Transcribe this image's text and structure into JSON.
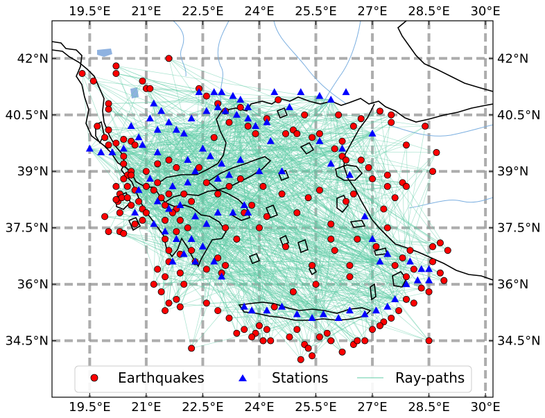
{
  "map": {
    "lon_range": [
      18.5,
      30.2
    ],
    "lat_range": [
      33.0,
      43.0
    ],
    "lon_ticks": [
      {
        "value": 19.5,
        "label": "19.5°E"
      },
      {
        "value": 21.0,
        "label": "21°E"
      },
      {
        "value": 22.5,
        "label": "22.5°E"
      },
      {
        "value": 24.0,
        "label": "24°E"
      },
      {
        "value": 25.5,
        "label": "25.5°E"
      },
      {
        "value": 27.0,
        "label": "27°E"
      },
      {
        "value": 28.5,
        "label": "28.5°E"
      },
      {
        "value": 30.0,
        "label": "30°E"
      }
    ],
    "lat_ticks": [
      {
        "value": 42.0,
        "label": "42°N"
      },
      {
        "value": 40.5,
        "label": "40.5°N"
      },
      {
        "value": 39.0,
        "label": "39°N"
      },
      {
        "value": 37.5,
        "label": "37.5°N"
      },
      {
        "value": 36.0,
        "label": "36°N"
      },
      {
        "value": 34.5,
        "label": "34.5°N"
      }
    ],
    "grid": "dashed",
    "legend_position": "bottom-center",
    "colors": {
      "earthquake": "#ff0000",
      "station": "#0000ff",
      "raypath": "#5fcca5",
      "coast": "#000000",
      "river": "#7aaee0",
      "grid": "#999999"
    }
  },
  "legend": {
    "earthquakes": "Earthquakes",
    "stations": "Stations",
    "raypaths": "Ray-paths"
  },
  "earthquakes": [
    [
      19.3,
      41.6
    ],
    [
      19.6,
      41.4
    ],
    [
      20.2,
      41.8
    ],
    [
      20.2,
      41.6
    ],
    [
      20.0,
      40.8
    ],
    [
      20.0,
      40.65
    ],
    [
      19.7,
      40.2
    ],
    [
      20.0,
      40.1
    ],
    [
      19.9,
      39.9
    ],
    [
      20.4,
      39.85
    ],
    [
      20.6,
      39.8
    ],
    [
      20.7,
      39.7
    ],
    [
      20.2,
      39.75
    ],
    [
      20.0,
      39.7
    ],
    [
      20.9,
      41.4
    ],
    [
      21.0,
      41.2
    ],
    [
      21.1,
      41.2
    ],
    [
      21.6,
      42.0
    ],
    [
      20.4,
      39.4
    ],
    [
      20.4,
      39.2
    ],
    [
      20.6,
      39.0
    ],
    [
      20.5,
      38.9
    ],
    [
      20.4,
      38.8
    ],
    [
      20.5,
      38.6
    ],
    [
      20.3,
      38.4
    ],
    [
      20.25,
      38.2
    ],
    [
      20.35,
      38.3
    ],
    [
      20.2,
      38.25
    ],
    [
      20.5,
      38.3
    ],
    [
      20.7,
      38.5
    ],
    [
      20.6,
      38.1
    ],
    [
      20.8,
      38.2
    ],
    [
      20.9,
      38.0
    ],
    [
      21.0,
      37.9
    ],
    [
      20.9,
      37.7
    ],
    [
      20.7,
      37.6
    ],
    [
      20.3,
      37.4
    ],
    [
      20.4,
      37.35
    ],
    [
      20.0,
      37.4
    ],
    [
      19.9,
      37.8
    ],
    [
      21.0,
      38.6
    ],
    [
      21.2,
      38.5
    ],
    [
      21.3,
      38.7
    ],
    [
      21.4,
      38.3
    ],
    [
      21.6,
      38.4
    ],
    [
      21.5,
      38.1
    ],
    [
      21.8,
      38.0
    ],
    [
      22.0,
      38.4
    ],
    [
      22.2,
      38.2
    ],
    [
      21.3,
      39.2
    ],
    [
      21.6,
      39.3
    ],
    [
      21.8,
      39.1
    ],
    [
      22.4,
      39.1
    ],
    [
      22.6,
      38.7
    ],
    [
      21.7,
      37.9
    ],
    [
      21.5,
      37.7
    ],
    [
      21.9,
      37.7
    ],
    [
      21.8,
      37.4
    ],
    [
      22.1,
      37.5
    ],
    [
      21.5,
      37.2
    ],
    [
      21.6,
      36.9
    ],
    [
      21.9,
      36.8
    ],
    [
      22.2,
      36.9
    ],
    [
      21.6,
      36.6
    ],
    [
      21.3,
      36.4
    ],
    [
      21.5,
      36.2
    ],
    [
      21.9,
      36.3
    ],
    [
      22.3,
      36.6
    ],
    [
      22.6,
      36.4
    ],
    [
      22.9,
      36.7
    ],
    [
      23.1,
      36.5
    ],
    [
      23.0,
      36.3
    ],
    [
      22.0,
      36.0
    ],
    [
      21.8,
      35.6
    ],
    [
      21.6,
      35.5
    ],
    [
      21.9,
      35.4
    ],
    [
      21.5,
      35.3
    ],
    [
      22.2,
      34.3
    ],
    [
      22.6,
      35.5
    ],
    [
      22.9,
      35.3
    ],
    [
      23.2,
      35.1
    ],
    [
      23.4,
      34.7
    ],
    [
      23.6,
      34.8
    ],
    [
      23.9,
      34.7
    ],
    [
      24.0,
      34.9
    ],
    [
      24.2,
      34.8
    ],
    [
      24.3,
      34.5
    ],
    [
      24.1,
      34.5
    ],
    [
      23.8,
      34.6
    ],
    [
      24.4,
      35.4
    ],
    [
      24.8,
      34.6
    ],
    [
      25.0,
      34.8
    ],
    [
      25.2,
      34.4
    ],
    [
      25.1,
      34.0
    ],
    [
      25.3,
      34.3
    ],
    [
      25.4,
      34.1
    ],
    [
      25.6,
      34.6
    ],
    [
      25.9,
      34.5
    ],
    [
      26.2,
      34.2
    ],
    [
      26.5,
      34.4
    ],
    [
      26.8,
      34.5
    ],
    [
      27.0,
      34.8
    ],
    [
      27.3,
      35.0
    ],
    [
      27.5,
      35.1
    ],
    [
      27.7,
      35.3
    ],
    [
      27.9,
      35.6
    ],
    [
      28.1,
      35.5
    ],
    [
      28.3,
      35.9
    ],
    [
      27.9,
      36.2
    ],
    [
      28.1,
      36.4
    ],
    [
      27.6,
      36.5
    ],
    [
      27.8,
      36.7
    ],
    [
      28.0,
      36.9
    ],
    [
      28.6,
      37.0
    ],
    [
      28.8,
      37.1
    ],
    [
      29.0,
      36.9
    ],
    [
      28.6,
      36.6
    ],
    [
      28.8,
      36.3
    ],
    [
      28.9,
      36.1
    ],
    [
      28.5,
      35.8
    ],
    [
      28.5,
      34.5
    ],
    [
      26.4,
      36.2
    ],
    [
      25.5,
      36.0
    ],
    [
      24.7,
      37.0
    ],
    [
      25.9,
      37.6
    ],
    [
      26.6,
      37.2
    ],
    [
      26.4,
      36.5
    ],
    [
      27.1,
      37.0
    ],
    [
      27.4,
      37.5
    ],
    [
      27.3,
      38.0
    ],
    [
      27.6,
      38.3
    ],
    [
      27.8,
      38.7
    ],
    [
      27.9,
      38.6
    ],
    [
      27.4,
      38.9
    ],
    [
      27.0,
      38.8
    ],
    [
      26.5,
      38.4
    ],
    [
      26.3,
      38.2
    ],
    [
      25.3,
      38.3
    ],
    [
      25.6,
      38.5
    ],
    [
      24.6,
      38.4
    ],
    [
      24.1,
      38.6
    ],
    [
      23.5,
      38.8
    ],
    [
      23.2,
      38.6
    ],
    [
      22.9,
      38.4
    ],
    [
      23.8,
      38.1
    ],
    [
      24.2,
      37.8
    ],
    [
      23.6,
      37.9
    ],
    [
      23.1,
      37.5
    ],
    [
      23.4,
      37.2
    ],
    [
      24.0,
      37.5
    ],
    [
      26.7,
      39.3
    ],
    [
      26.2,
      39.4
    ],
    [
      26.0,
      39.6
    ],
    [
      25.6,
      40.0
    ],
    [
      25.4,
      39.9
    ],
    [
      24.7,
      40.0
    ],
    [
      24.9,
      40.1
    ],
    [
      25.0,
      40.0
    ],
    [
      26.2,
      39.8
    ],
    [
      26.5,
      40.2
    ],
    [
      26.7,
      40.4
    ],
    [
      26.1,
      40.5
    ],
    [
      25.2,
      40.5
    ],
    [
      23.7,
      40.2
    ],
    [
      23.2,
      40.3
    ],
    [
      23.9,
      40.0
    ],
    [
      24.2,
      40.4
    ],
    [
      22.9,
      40.8
    ],
    [
      22.4,
      41.2
    ],
    [
      22.6,
      41.0
    ],
    [
      23.1,
      40.6
    ],
    [
      23.5,
      40.7
    ],
    [
      24.5,
      40.9
    ],
    [
      27.2,
      40.6
    ],
    [
      27.5,
      40.5
    ],
    [
      27.5,
      40.3
    ],
    [
      28.4,
      40.2
    ],
    [
      28.7,
      39.5
    ],
    [
      28.6,
      39.0
    ],
    [
      27.9,
      39.7
    ],
    [
      26.9,
      39.1
    ],
    [
      26.3,
      39.3
    ],
    [
      27.4,
      38.6
    ],
    [
      25.0,
      37.9
    ],
    [
      25.9,
      37.2
    ],
    [
      26.0,
      36.9
    ],
    [
      24.9,
      35.8
    ],
    [
      25.4,
      36.5
    ],
    [
      22.8,
      39.9
    ],
    [
      20.6,
      38.9
    ],
    [
      20.2,
      38.6
    ],
    [
      21.0,
      39.0
    ],
    [
      20.3,
      37.9
    ],
    [
      21.2,
      36.0
    ],
    [
      21.4,
      35.8
    ],
    [
      27.2,
      34.9
    ],
    [
      26.6,
      34.5
    ],
    [
      25.8,
      34.7
    ]
  ],
  "stations": [
    [
      19.5,
      39.6
    ],
    [
      19.8,
      39.5
    ],
    [
      20.1,
      39.5
    ],
    [
      20.4,
      39.6
    ],
    [
      20.6,
      40.2
    ],
    [
      20.9,
      39.7
    ],
    [
      21.1,
      40.4
    ],
    [
      21.2,
      40.8
    ],
    [
      21.4,
      40.6
    ],
    [
      21.6,
      40.3
    ],
    [
      21.3,
      40.1
    ],
    [
      21.8,
      40.1
    ],
    [
      22.2,
      40.4
    ],
    [
      22.6,
      40.6
    ],
    [
      22.9,
      40.7
    ],
    [
      23.1,
      40.6
    ],
    [
      23.4,
      40.5
    ],
    [
      23.7,
      40.4
    ],
    [
      23.9,
      40.2
    ],
    [
      24.2,
      40.3
    ],
    [
      22.4,
      41.1
    ],
    [
      22.8,
      41.1
    ],
    [
      23.0,
      41.1
    ],
    [
      23.3,
      41.0
    ],
    [
      23.5,
      40.9
    ],
    [
      23.7,
      40.7
    ],
    [
      24.4,
      41.1
    ],
    [
      25.1,
      41.1
    ],
    [
      25.6,
      41.0
    ],
    [
      26.3,
      41.1
    ],
    [
      25.9,
      40.9
    ],
    [
      24.8,
      40.7
    ],
    [
      22.5,
      39.6
    ],
    [
      22.7,
      39.4
    ],
    [
      23.0,
      39.2
    ],
    [
      23.2,
      38.9
    ],
    [
      22.9,
      38.8
    ],
    [
      23.5,
      39.3
    ],
    [
      22.3,
      39.0
    ],
    [
      22.1,
      38.7
    ],
    [
      21.7,
      38.6
    ],
    [
      21.1,
      38.8
    ],
    [
      21.3,
      38.2
    ],
    [
      21.6,
      38.0
    ],
    [
      21.9,
      38.1
    ],
    [
      22.3,
      37.8
    ],
    [
      22.6,
      37.6
    ],
    [
      22.9,
      37.9
    ],
    [
      23.3,
      37.9
    ],
    [
      23.6,
      38.1
    ],
    [
      21.2,
      37.6
    ],
    [
      21.5,
      37.4
    ],
    [
      21.8,
      37.2
    ],
    [
      22.2,
      37.2
    ],
    [
      22.5,
      37.0
    ],
    [
      22.0,
      36.8
    ],
    [
      21.7,
      36.6
    ],
    [
      22.3,
      36.6
    ],
    [
      22.8,
      36.6
    ],
    [
      23.0,
      36.2
    ],
    [
      23.6,
      35.4
    ],
    [
      23.8,
      35.3
    ],
    [
      24.2,
      35.3
    ],
    [
      24.6,
      35.4
    ],
    [
      25.0,
      35.2
    ],
    [
      25.4,
      35.1
    ],
    [
      25.7,
      35.2
    ],
    [
      26.1,
      35.1
    ],
    [
      26.4,
      35.3
    ],
    [
      26.8,
      35.2
    ],
    [
      27.1,
      35.3
    ],
    [
      27.4,
      35.4
    ],
    [
      27.6,
      35.6
    ],
    [
      27.9,
      36.0
    ],
    [
      28.2,
      36.1
    ],
    [
      28.5,
      36.1
    ],
    [
      28.3,
      36.4
    ],
    [
      28.0,
      36.6
    ],
    [
      27.4,
      36.8
    ],
    [
      27.2,
      36.6
    ],
    [
      27.0,
      37.2
    ],
    [
      26.8,
      37.8
    ],
    [
      26.4,
      38.9
    ],
    [
      25.9,
      39.2
    ],
    [
      24.6,
      39.0
    ],
    [
      25.6,
      39.8
    ],
    [
      26.2,
      39.6
    ],
    [
      27.0,
      40.0
    ],
    [
      24.0,
      39.0
    ],
    [
      24.3,
      39.8
    ],
    [
      20.7,
      37.9
    ],
    [
      20.8,
      38.5
    ],
    [
      22.1,
      39.3
    ],
    [
      21.3,
      39.5
    ],
    [
      22.0,
      40.0
    ],
    [
      20.8,
      39.9
    ],
    [
      23.7,
      37.9
    ],
    [
      28.5,
      36.4
    ]
  ]
}
